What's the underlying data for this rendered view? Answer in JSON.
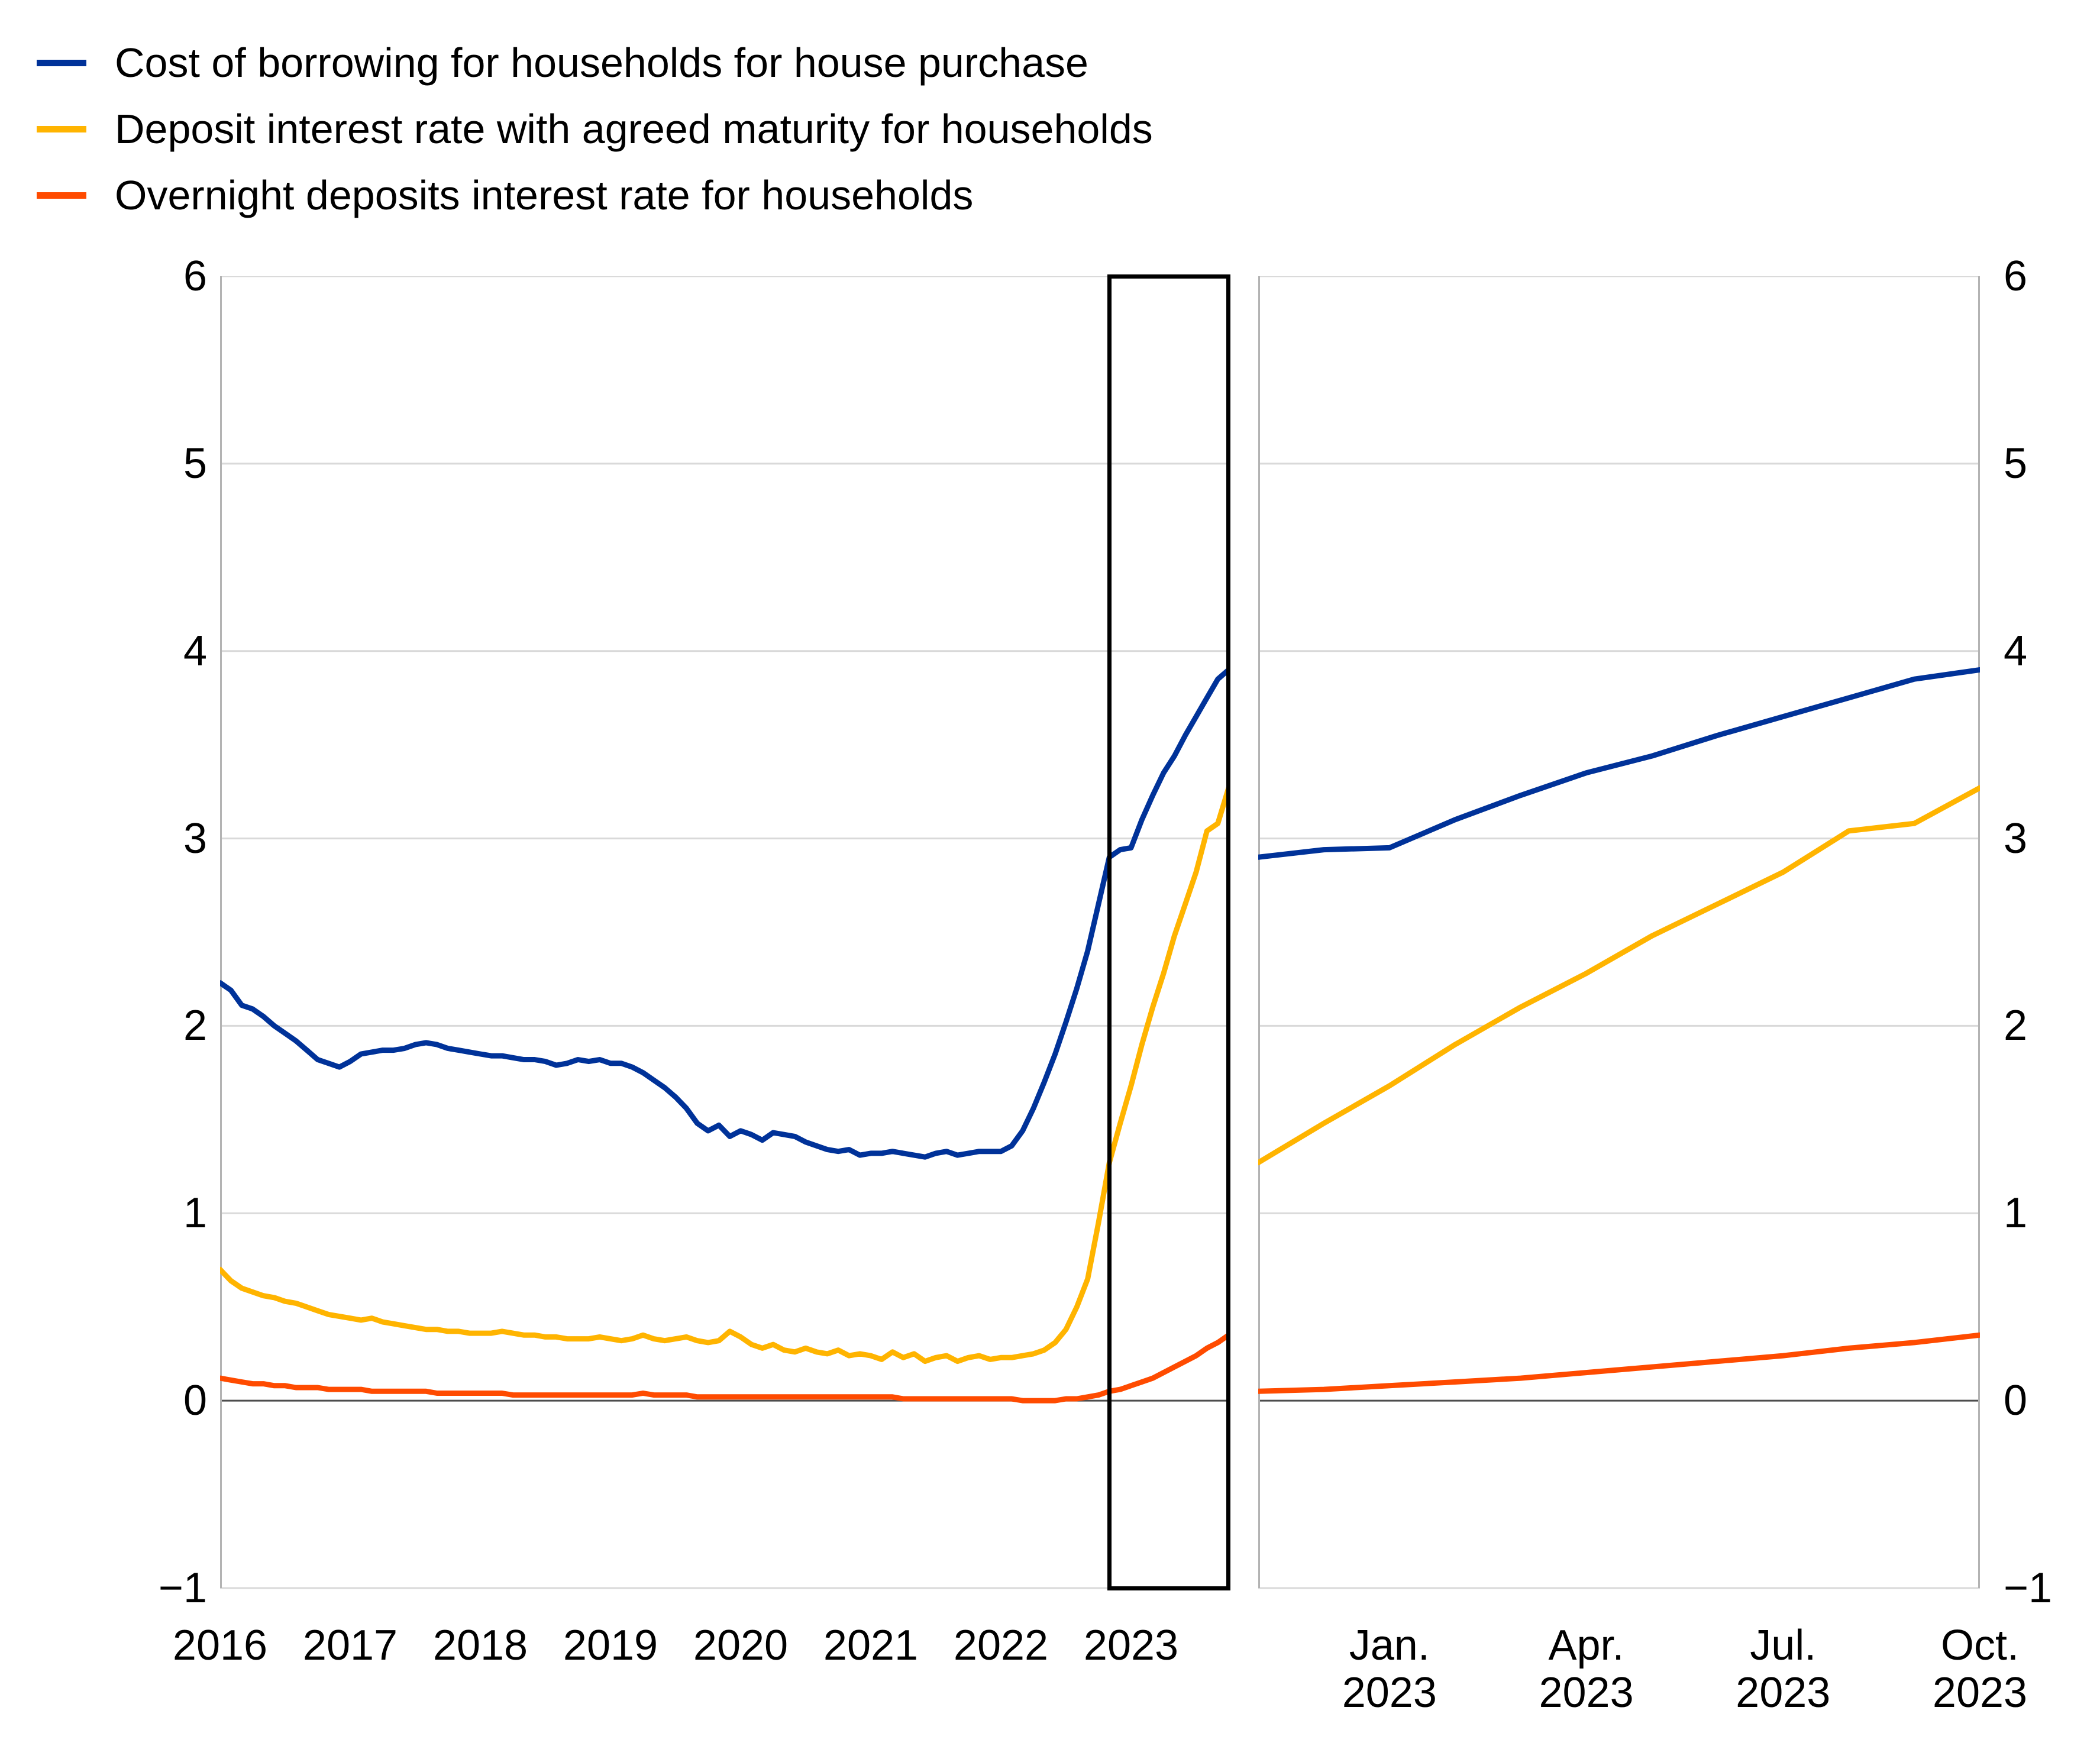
{
  "legend": {
    "items": [
      {
        "name": "cost-of-borrowing",
        "label": "Cost of borrowing for households for house purchase",
        "color": "#003299"
      },
      {
        "name": "deposit-agreed-maturity",
        "label": "Deposit interest rate with agreed maturity for households",
        "color": "#ffb400"
      },
      {
        "name": "overnight-deposits",
        "label": "Overnight deposits interest rate for households",
        "color": "#ff4b00"
      }
    ]
  },
  "axes": {
    "y_tick_labels": [
      "6",
      "5",
      "4",
      "3",
      "2",
      "1",
      "0",
      "−1"
    ],
    "y_tick_values": [
      6,
      5,
      4,
      3,
      2,
      1,
      0,
      -1
    ],
    "left_panel_x_tick_labels": [
      "2016",
      "2017",
      "2018",
      "2019",
      "2020",
      "2021",
      "2022",
      "2023"
    ],
    "right_panel_x_tick_labels": [
      {
        "line1": "Jan.",
        "line2": "2023"
      },
      {
        "line1": "Apr.",
        "line2": "2023"
      },
      {
        "line1": "Jul.",
        "line2": "2023"
      },
      {
        "line1": "Oct.",
        "line2": "2023"
      }
    ]
  },
  "colors": {
    "gridline": "#d9d9d9",
    "zero_line": "#4d4d4d",
    "panel_border": "#b3b3b3",
    "highlight_box": "#000000",
    "text": "#000000"
  },
  "chart_data": [
    {
      "type": "line",
      "panel": "main",
      "x_start": "2016-01",
      "x_end": "2023-10",
      "ylim": [
        -1,
        6
      ],
      "grid": "horizontal",
      "x_tick_month_indices": [
        0,
        12,
        24,
        36,
        48,
        60,
        72,
        84
      ],
      "highlight_box_month_range": [
        82,
        93
      ],
      "series": [
        {
          "name": "Cost of borrowing for households for house purchase",
          "color": "#003299",
          "values": [
            2.23,
            2.19,
            2.11,
            2.09,
            2.05,
            2.0,
            1.96,
            1.92,
            1.87,
            1.82,
            1.8,
            1.78,
            1.81,
            1.85,
            1.86,
            1.87,
            1.87,
            1.88,
            1.9,
            1.91,
            1.9,
            1.88,
            1.87,
            1.86,
            1.85,
            1.84,
            1.84,
            1.83,
            1.82,
            1.82,
            1.81,
            1.79,
            1.8,
            1.82,
            1.81,
            1.82,
            1.8,
            1.8,
            1.78,
            1.75,
            1.71,
            1.67,
            1.62,
            1.56,
            1.48,
            1.44,
            1.47,
            1.41,
            1.44,
            1.42,
            1.39,
            1.43,
            1.42,
            1.41,
            1.38,
            1.36,
            1.34,
            1.33,
            1.34,
            1.31,
            1.32,
            1.32,
            1.33,
            1.32,
            1.31,
            1.3,
            1.32,
            1.33,
            1.31,
            1.32,
            1.33,
            1.33,
            1.33,
            1.36,
            1.44,
            1.56,
            1.7,
            1.85,
            2.02,
            2.2,
            2.4,
            2.65,
            2.9,
            2.94,
            2.95,
            3.1,
            3.23,
            3.35,
            3.44,
            3.55,
            3.65,
            3.75,
            3.85,
            3.9
          ]
        },
        {
          "name": "Deposit interest rate with agreed maturity for households",
          "color": "#ffb400",
          "values": [
            0.7,
            0.64,
            0.6,
            0.58,
            0.56,
            0.55,
            0.53,
            0.52,
            0.5,
            0.48,
            0.46,
            0.45,
            0.44,
            0.43,
            0.44,
            0.42,
            0.41,
            0.4,
            0.39,
            0.38,
            0.38,
            0.37,
            0.37,
            0.36,
            0.36,
            0.36,
            0.37,
            0.36,
            0.35,
            0.35,
            0.34,
            0.34,
            0.33,
            0.33,
            0.33,
            0.34,
            0.33,
            0.32,
            0.33,
            0.35,
            0.33,
            0.32,
            0.33,
            0.34,
            0.32,
            0.31,
            0.32,
            0.37,
            0.34,
            0.3,
            0.28,
            0.3,
            0.27,
            0.26,
            0.28,
            0.26,
            0.25,
            0.27,
            0.24,
            0.25,
            0.24,
            0.22,
            0.26,
            0.23,
            0.25,
            0.21,
            0.23,
            0.24,
            0.21,
            0.23,
            0.24,
            0.22,
            0.23,
            0.23,
            0.24,
            0.25,
            0.27,
            0.31,
            0.38,
            0.5,
            0.65,
            0.95,
            1.27,
            1.48,
            1.68,
            1.9,
            2.1,
            2.28,
            2.48,
            2.65,
            2.82,
            3.04,
            3.08,
            3.27
          ]
        },
        {
          "name": "Overnight deposits interest rate for households",
          "color": "#ff4b00",
          "values": [
            0.12,
            0.11,
            0.1,
            0.09,
            0.09,
            0.08,
            0.08,
            0.07,
            0.07,
            0.07,
            0.06,
            0.06,
            0.06,
            0.06,
            0.05,
            0.05,
            0.05,
            0.05,
            0.05,
            0.05,
            0.04,
            0.04,
            0.04,
            0.04,
            0.04,
            0.04,
            0.04,
            0.03,
            0.03,
            0.03,
            0.03,
            0.03,
            0.03,
            0.03,
            0.03,
            0.03,
            0.03,
            0.03,
            0.03,
            0.04,
            0.03,
            0.03,
            0.03,
            0.03,
            0.02,
            0.02,
            0.02,
            0.02,
            0.02,
            0.02,
            0.02,
            0.02,
            0.02,
            0.02,
            0.02,
            0.02,
            0.02,
            0.02,
            0.02,
            0.02,
            0.02,
            0.02,
            0.02,
            0.01,
            0.01,
            0.01,
            0.01,
            0.01,
            0.01,
            0.01,
            0.01,
            0.01,
            0.01,
            0.01,
            0.0,
            0.0,
            0.0,
            0.0,
            0.01,
            0.01,
            0.02,
            0.03,
            0.05,
            0.06,
            0.08,
            0.1,
            0.12,
            0.15,
            0.18,
            0.21,
            0.24,
            0.28,
            0.31,
            0.35
          ]
        }
      ]
    },
    {
      "type": "line",
      "panel": "zoom",
      "x_start": "2022-11",
      "x_end": "2023-10",
      "ylim": [
        -1,
        6
      ],
      "grid": "horizontal",
      "x_tick_month_indices": [
        2,
        5,
        8,
        11
      ],
      "series": [
        {
          "name": "Cost of borrowing for households for house purchase",
          "color": "#003299",
          "values": [
            2.9,
            2.94,
            2.95,
            3.1,
            3.23,
            3.35,
            3.44,
            3.55,
            3.65,
            3.75,
            3.85,
            3.9
          ]
        },
        {
          "name": "Deposit interest rate with agreed maturity for households",
          "color": "#ffb400",
          "values": [
            1.27,
            1.48,
            1.68,
            1.9,
            2.1,
            2.28,
            2.48,
            2.65,
            2.82,
            3.04,
            3.08,
            3.27
          ]
        },
        {
          "name": "Overnight deposits interest rate for households",
          "color": "#ff4b00",
          "values": [
            0.05,
            0.06,
            0.08,
            0.1,
            0.12,
            0.15,
            0.18,
            0.21,
            0.24,
            0.28,
            0.31,
            0.35
          ]
        }
      ]
    }
  ]
}
